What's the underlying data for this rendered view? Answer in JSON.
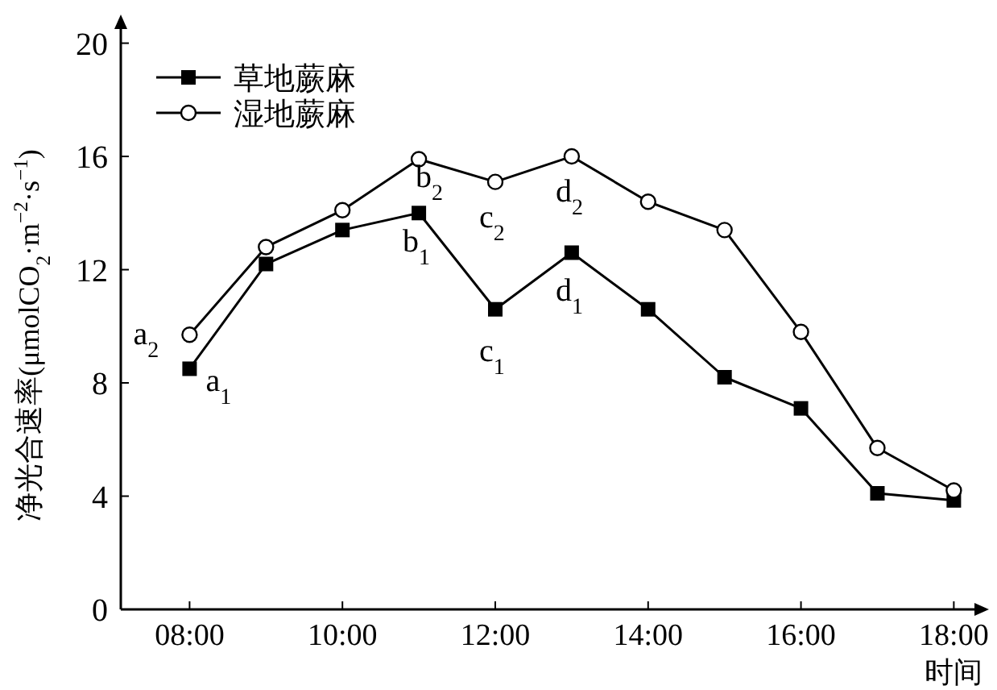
{
  "chart_data": {
    "type": "line",
    "xlabel": "时间",
    "ylabel": "净光合速率(μmolCO$_{2}$·m$^{−2}$·s$^{−1}$)",
    "x": [
      8,
      9,
      10,
      11,
      12,
      13,
      14,
      15,
      16,
      17,
      18
    ],
    "xlim": [
      7.1,
      18.27
    ],
    "xticks": [
      {
        "value": 8,
        "label": "08:00"
      },
      {
        "value": 10,
        "label": "10:00"
      },
      {
        "value": 12,
        "label": "12:00"
      },
      {
        "value": 14,
        "label": "14:00"
      },
      {
        "value": 16,
        "label": "16:00"
      },
      {
        "value": 18,
        "label": "18:00"
      }
    ],
    "ylim": [
      0,
      20.5
    ],
    "yticks": [
      0,
      4,
      8,
      12,
      16,
      20
    ],
    "series": [
      {
        "name": "草地蕨麻",
        "color": "#000000",
        "marker": "square",
        "values": [
          8.5,
          12.2,
          13.4,
          14.0,
          10.6,
          12.6,
          10.6,
          8.2,
          7.1,
          4.1,
          3.85
        ]
      },
      {
        "name": "湿地蕨麻",
        "color": "#000000",
        "marker": "circle",
        "values": [
          9.7,
          12.8,
          14.1,
          15.9,
          15.1,
          16.0,
          14.4,
          13.4,
          9.8,
          5.7,
          4.2
        ]
      }
    ],
    "annotations": [
      {
        "text": "a$_{1}$",
        "x": 8,
        "y": 8.5
      },
      {
        "text": "a$_{2}$",
        "x": 8,
        "y": 9.7
      },
      {
        "text": "b$_{1}$",
        "x": 11,
        "y": 14.0
      },
      {
        "text": "b$_{2}$",
        "x": 11,
        "y": 15.9
      },
      {
        "text": "c$_{1}$",
        "x": 12,
        "y": 10.6
      },
      {
        "text": "c$_{2}$",
        "x": 12,
        "y": 15.1
      },
      {
        "text": "d$_{1}$",
        "x": 13,
        "y": 12.6
      },
      {
        "text": "d$_{2}$",
        "x": 13,
        "y": 16.0
      }
    ],
    "legend": "top left",
    "grid": false
  }
}
